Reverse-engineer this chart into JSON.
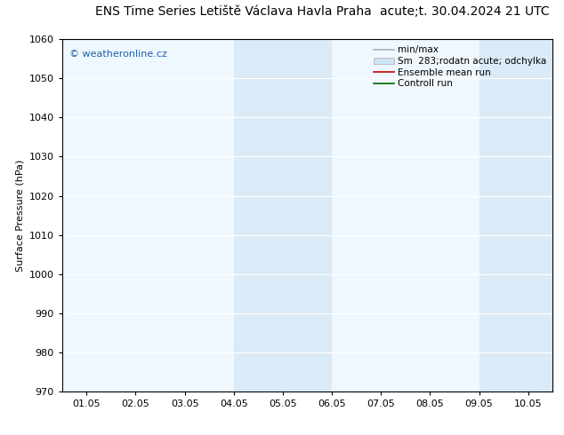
{
  "title_left": "ENS Time Series Letiště Václava Havla Praha",
  "title_right": "acute;t. 30.04.2024 21 UTC",
  "ylabel": "Surface Pressure (hPa)",
  "xlim_dates": [
    "01.05",
    "02.05",
    "03.05",
    "04.05",
    "05.05",
    "06.05",
    "07.05",
    "08.05",
    "09.05",
    "10.05"
  ],
  "ylim": [
    970,
    1060
  ],
  "yticks": [
    970,
    980,
    990,
    1000,
    1010,
    1020,
    1030,
    1040,
    1050,
    1060
  ],
  "shaded_regions": [
    {
      "xstart": 3.0,
      "xend": 5.0,
      "color": "#daeaf6"
    },
    {
      "xstart": 8.0,
      "xend": 9.5,
      "color": "#daeaf6"
    }
  ],
  "legend_entries": [
    {
      "label": "min/max",
      "color": "#b0b0b0",
      "lw": 1.2,
      "type": "line"
    },
    {
      "label": "Sm  283;rodatn acute; odchylka",
      "color": "#cce5f5",
      "lw": 8,
      "type": "band"
    },
    {
      "label": "Ensemble mean run",
      "color": "#cc0000",
      "lw": 1.2,
      "type": "line"
    },
    {
      "label": "Controll run",
      "color": "#006600",
      "lw": 1.2,
      "type": "line"
    }
  ],
  "watermark_text": "© weatheronline.cz",
  "watermark_color": "#1a5fa8",
  "bg_color": "#ffffff",
  "plot_bg_color": "#f0f8ff",
  "grid_color": "#ffffff",
  "spine_color": "#000000",
  "title_fontsize": 10,
  "axis_fontsize": 8,
  "tick_fontsize": 8,
  "legend_fontsize": 7.5
}
